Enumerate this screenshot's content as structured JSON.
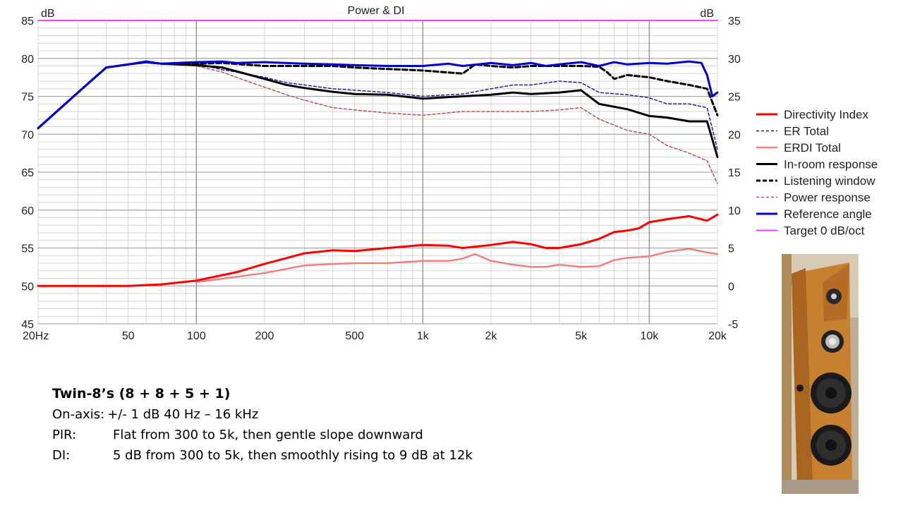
{
  "chart_data": {
    "type": "line",
    "title": "Power & DI",
    "x_scale": "log",
    "xlim": [
      20,
      20000
    ],
    "x_ticks": [
      20,
      50,
      100,
      200,
      500,
      1000,
      2000,
      5000,
      10000,
      20000
    ],
    "x_tick_labels": [
      "20Hz",
      "50",
      "100",
      "200",
      "500",
      "1k",
      "2k",
      "5k",
      "10k",
      "20k"
    ],
    "y_left": {
      "label": "dB",
      "lim": [
        45,
        85
      ],
      "ticks": [
        45,
        50,
        55,
        60,
        65,
        70,
        75,
        80,
        85
      ]
    },
    "y_right": {
      "label": "dB",
      "lim": [
        -5,
        35
      ],
      "ticks": [
        -5,
        0,
        5,
        10,
        15,
        20,
        25,
        30,
        35
      ]
    },
    "grid": true,
    "legend_position": "right",
    "series": [
      {
        "name": "Directivity Index",
        "axis": "right",
        "color": "#ff0000",
        "dash": "solid",
        "width": 3,
        "x": [
          20,
          50,
          70,
          100,
          150,
          200,
          300,
          400,
          500,
          700,
          1000,
          1300,
          1500,
          2000,
          2500,
          3000,
          3500,
          4000,
          5000,
          6000,
          7000,
          8000,
          9000,
          10000,
          12000,
          15000,
          18000,
          20000
        ],
        "y": [
          0,
          0,
          0.2,
          0.7,
          1.8,
          2.9,
          4.3,
          4.7,
          4.6,
          5.0,
          5.4,
          5.3,
          5.0,
          5.4,
          5.8,
          5.5,
          5.0,
          5.0,
          5.5,
          6.2,
          7.1,
          7.3,
          7.6,
          8.4,
          8.8,
          9.2,
          8.6,
          9.4
        ]
      },
      {
        "name": "ER Total",
        "axis": "left",
        "color": "#1f1fa0",
        "dash": "dashed",
        "width": 1.5,
        "x": [
          20,
          30,
          40,
          50,
          60,
          70,
          100,
          130,
          150,
          200,
          250,
          300,
          400,
          500,
          700,
          1000,
          1500,
          2000,
          2500,
          3000,
          4000,
          5000,
          6000,
          8000,
          10000,
          12000,
          15000,
          18000,
          20000
        ],
        "y": [
          70.8,
          75.5,
          78.8,
          79.2,
          79.5,
          79.3,
          79.3,
          78.5,
          78.2,
          77.5,
          76.8,
          76.5,
          76.0,
          75.8,
          75.5,
          75.0,
          75.3,
          76.0,
          76.5,
          76.5,
          77.0,
          76.8,
          75.5,
          75.2,
          74.8,
          74.0,
          74.0,
          73.5,
          68.0
        ]
      },
      {
        "name": "ERDI Total",
        "axis": "right",
        "color": "#f08080",
        "dash": "solid",
        "width": 2.5,
        "x": [
          100,
          150,
          200,
          300,
          400,
          500,
          700,
          1000,
          1300,
          1500,
          1700,
          2000,
          2500,
          3000,
          3500,
          4000,
          5000,
          6000,
          7000,
          8000,
          10000,
          12000,
          15000,
          18000,
          20000
        ],
        "y": [
          0.5,
          1.2,
          1.7,
          2.7,
          2.9,
          3.0,
          3.0,
          3.3,
          3.3,
          3.6,
          4.2,
          3.3,
          2.8,
          2.5,
          2.5,
          2.8,
          2.5,
          2.6,
          3.4,
          3.7,
          3.9,
          4.5,
          4.9,
          4.4,
          4.2
        ]
      },
      {
        "name": "In-room response",
        "axis": "left",
        "color": "#000000",
        "dash": "solid",
        "width": 3,
        "x": [
          20,
          30,
          40,
          50,
          60,
          70,
          100,
          130,
          150,
          200,
          250,
          300,
          400,
          500,
          700,
          1000,
          1500,
          2000,
          2500,
          3000,
          4000,
          5000,
          6000,
          8000,
          10000,
          12000,
          15000,
          18000,
          20000
        ],
        "y": [
          70.8,
          75.5,
          78.8,
          79.2,
          79.5,
          79.3,
          79.1,
          78.8,
          78.3,
          77.3,
          76.5,
          76.1,
          75.6,
          75.3,
          75.2,
          74.7,
          75.0,
          75.2,
          75.5,
          75.3,
          75.5,
          75.8,
          74.0,
          73.3,
          72.4,
          72.2,
          71.7,
          71.7,
          67.0
        ]
      },
      {
        "name": "Listening window",
        "axis": "left",
        "color": "#000000",
        "dash": "dashed",
        "width": 3,
        "x": [
          20,
          30,
          40,
          50,
          60,
          70,
          100,
          130,
          200,
          300,
          400,
          500,
          700,
          1000,
          1500,
          1700,
          2000,
          2500,
          3000,
          4000,
          5000,
          6000,
          6500,
          7000,
          8000,
          10000,
          12000,
          15000,
          18000,
          20000
        ],
        "y": [
          70.8,
          75.5,
          78.8,
          79.2,
          79.5,
          79.3,
          79.3,
          79.4,
          79.0,
          79.0,
          79.0,
          78.8,
          78.6,
          78.4,
          78.0,
          79.2,
          79.0,
          78.8,
          79.0,
          79.0,
          79.0,
          78.9,
          78.2,
          77.3,
          77.8,
          77.5,
          77.0,
          76.5,
          76.0,
          72.5
        ]
      },
      {
        "name": "Power response",
        "axis": "left",
        "color": "#c05050",
        "dash": "dashed",
        "width": 1.5,
        "x": [
          20,
          30,
          40,
          50,
          60,
          70,
          100,
          130,
          150,
          200,
          250,
          300,
          400,
          500,
          700,
          1000,
          1500,
          2000,
          2500,
          3000,
          4000,
          5000,
          6000,
          8000,
          10000,
          12000,
          15000,
          18000,
          20000
        ],
        "y": [
          70.8,
          75.5,
          78.8,
          79.2,
          79.5,
          79.3,
          79.0,
          78.2,
          77.5,
          76.2,
          75.2,
          74.5,
          73.5,
          73.2,
          72.8,
          72.5,
          73.0,
          73.0,
          73.0,
          73.0,
          73.2,
          73.5,
          72.0,
          70.5,
          70.0,
          68.5,
          67.5,
          66.5,
          63.5
        ]
      },
      {
        "name": "Reference angle",
        "axis": "left",
        "color": "#0000cc",
        "dash": "solid",
        "width": 3,
        "x": [
          20,
          30,
          40,
          50,
          60,
          70,
          100,
          130,
          150,
          200,
          300,
          400,
          500,
          700,
          1000,
          1300,
          1500,
          2000,
          2500,
          3000,
          3500,
          4000,
          5000,
          6000,
          7000,
          8000,
          10000,
          12000,
          15000,
          17000,
          18000,
          19000,
          20000
        ],
        "y": [
          70.8,
          75.5,
          78.8,
          79.2,
          79.6,
          79.3,
          79.5,
          79.6,
          79.4,
          79.5,
          79.3,
          79.2,
          79.1,
          79.0,
          79.0,
          79.3,
          79.0,
          79.4,
          79.1,
          79.4,
          79.0,
          79.2,
          79.5,
          79.0,
          79.5,
          79.2,
          79.4,
          79.3,
          79.6,
          79.4,
          77.8,
          75.0,
          75.5
        ]
      },
      {
        "name": "Target 0 dB/oct",
        "axis": "left",
        "color": "#ff40ff",
        "dash": "solid",
        "width": 2,
        "x": [
          20,
          20000
        ],
        "y": [
          85,
          85
        ]
      }
    ]
  },
  "caption": {
    "title": "Twin-8’s (8 + 8 + 5 + 1)",
    "lines": [
      {
        "label": "On-axis:",
        "text": "+/- 1 dB 40 Hz – 16 kHz"
      },
      {
        "label": "PIR:",
        "text": "Flat from 300 to 5k, then gentle slope downward"
      },
      {
        "label": "DI:",
        "text": "5 dB from 300 to 5k, then smoothly rising to 9 dB at 12k"
      }
    ]
  }
}
